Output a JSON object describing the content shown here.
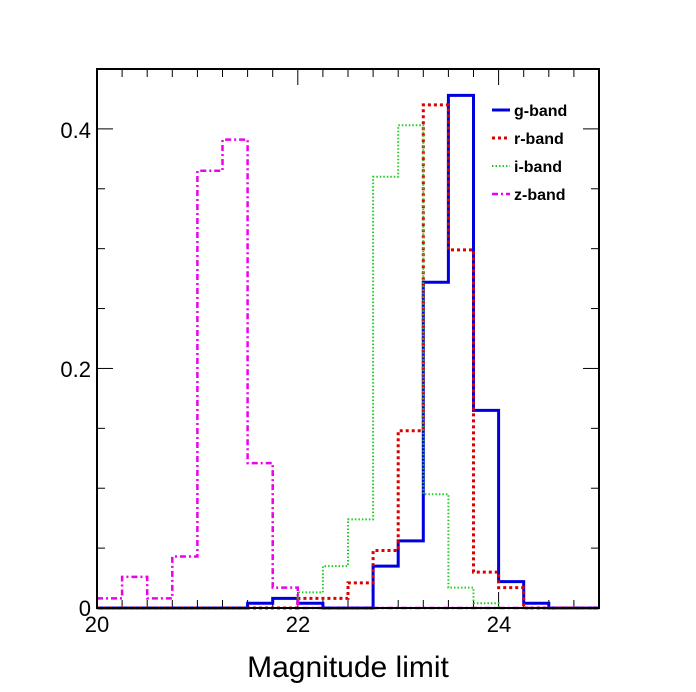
{
  "chart_data": {
    "type": "histogram",
    "title": "",
    "xlabel": "Magnitude limit",
    "ylabel": "",
    "xlim": [
      20,
      25
    ],
    "ylim": [
      0,
      0.45
    ],
    "bin_width": 0.25,
    "bin_start": 20,
    "x_tick_labels": [
      "20",
      "22",
      "24"
    ],
    "x_tick_values": [
      20,
      22,
      24
    ],
    "y_tick_labels": [
      "0",
      "0.2",
      "0.4"
    ],
    "y_tick_values": [
      0,
      0.2,
      0.4
    ],
    "legend_position": "top-right",
    "series": [
      {
        "name": "g-band",
        "color": "#0000dd",
        "dash": "solid",
        "values": [
          0,
          0,
          0,
          0,
          0,
          0,
          0.004,
          0.008,
          0.004,
          0,
          0,
          0.035,
          0.056,
          0.272,
          0.428,
          0.165,
          0.022,
          0.004,
          0,
          0
        ]
      },
      {
        "name": "r-band",
        "color": "#dd0000",
        "dash": "dotted",
        "values": [
          0,
          0,
          0,
          0,
          0,
          0,
          0,
          0,
          0.008,
          0.008,
          0.021,
          0.048,
          0.148,
          0.42,
          0.299,
          0.03,
          0.017,
          0,
          0,
          0
        ]
      },
      {
        "name": "i-band",
        "color": "#22cc22",
        "dash": "finedot",
        "values": [
          0,
          0,
          0,
          0,
          0,
          0,
          0,
          0,
          0.013,
          0.035,
          0.074,
          0.36,
          0.403,
          0.095,
          0.017,
          0.004,
          0,
          0,
          0,
          0
        ]
      },
      {
        "name": "z-band",
        "color": "#ee00ee",
        "dash": "dashdot",
        "values": [
          0.008,
          0.026,
          0.008,
          0.043,
          0.365,
          0.391,
          0.121,
          0.017,
          0,
          0,
          0,
          0,
          0,
          0,
          0,
          0,
          0,
          0,
          0,
          0
        ]
      }
    ]
  }
}
